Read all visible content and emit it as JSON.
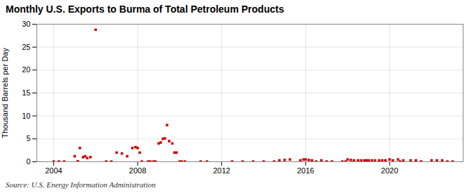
{
  "chart_data": {
    "type": "scatter",
    "title": "Monthly U.S. Exports to Burma of Total Petroleum Products",
    "ylabel": "Thousand Barrels per Day",
    "annotations": [
      "Source: U.S. Energy Information Administration"
    ],
    "color": "#cc0000",
    "marker": "square",
    "grid": true,
    "xlim": [
      2003.2,
      2023.5
    ],
    "xticks": [
      2004,
      2008,
      2012,
      2016,
      2020
    ],
    "ylim": [
      0,
      30
    ],
    "yticks": [
      0,
      5,
      10,
      15,
      20,
      25,
      30
    ],
    "x": [
      2004.0,
      2004.25,
      2004.5,
      2005.0,
      2005.15,
      2005.25,
      2005.4,
      2005.5,
      2005.6,
      2005.75,
      2006.0,
      2006.5,
      2006.75,
      2007.0,
      2007.25,
      2007.5,
      2007.75,
      2007.9,
      2008.0,
      2008.1,
      2008.2,
      2008.5,
      2008.6,
      2008.75,
      2008.85,
      2009.0,
      2009.1,
      2009.2,
      2009.3,
      2009.4,
      2009.5,
      2009.65,
      2009.75,
      2009.85,
      2010.0,
      2010.1,
      2010.25,
      2011.0,
      2011.3,
      2012.5,
      2013.0,
      2013.5,
      2014.0,
      2014.5,
      2014.75,
      2015.0,
      2015.25,
      2015.75,
      2015.9,
      2016.0,
      2016.15,
      2016.3,
      2016.5,
      2016.75,
      2017.0,
      2017.25,
      2017.75,
      2017.9,
      2018.0,
      2018.15,
      2018.3,
      2018.5,
      2018.65,
      2018.8,
      2018.9,
      2019.0,
      2019.15,
      2019.3,
      2019.5,
      2019.65,
      2019.8,
      2020.0,
      2020.15,
      2020.4,
      2020.5,
      2020.65,
      2021.0,
      2021.25,
      2021.5,
      2022.0,
      2022.25,
      2022.5,
      2022.75,
      2023.0
    ],
    "values": [
      0.05,
      0.05,
      0.05,
      1.2,
      0.1,
      3.0,
      1.0,
      1.2,
      0.8,
      1.0,
      28.8,
      0.05,
      0.05,
      2.0,
      1.8,
      1.2,
      3.0,
      3.2,
      3.0,
      2.0,
      0.05,
      0.05,
      0.05,
      0.05,
      0.05,
      4.0,
      4.2,
      5.0,
      5.1,
      8.0,
      4.5,
      4.0,
      2.0,
      2.0,
      0.05,
      0.05,
      0.05,
      0.05,
      0.05,
      0.05,
      0.05,
      0.05,
      0.05,
      0.05,
      0.3,
      0.4,
      0.5,
      0.3,
      0.5,
      0.5,
      0.4,
      0.3,
      0.05,
      0.3,
      0.05,
      0.05,
      0.05,
      0.05,
      0.5,
      0.4,
      0.3,
      0.3,
      0.3,
      0.3,
      0.3,
      0.3,
      0.3,
      0.3,
      0.3,
      0.3,
      0.3,
      0.5,
      0.3,
      0.5,
      0.05,
      0.3,
      0.3,
      0.3,
      0.05,
      0.3,
      0.3,
      0.3,
      0.05,
      0.05
    ]
  }
}
